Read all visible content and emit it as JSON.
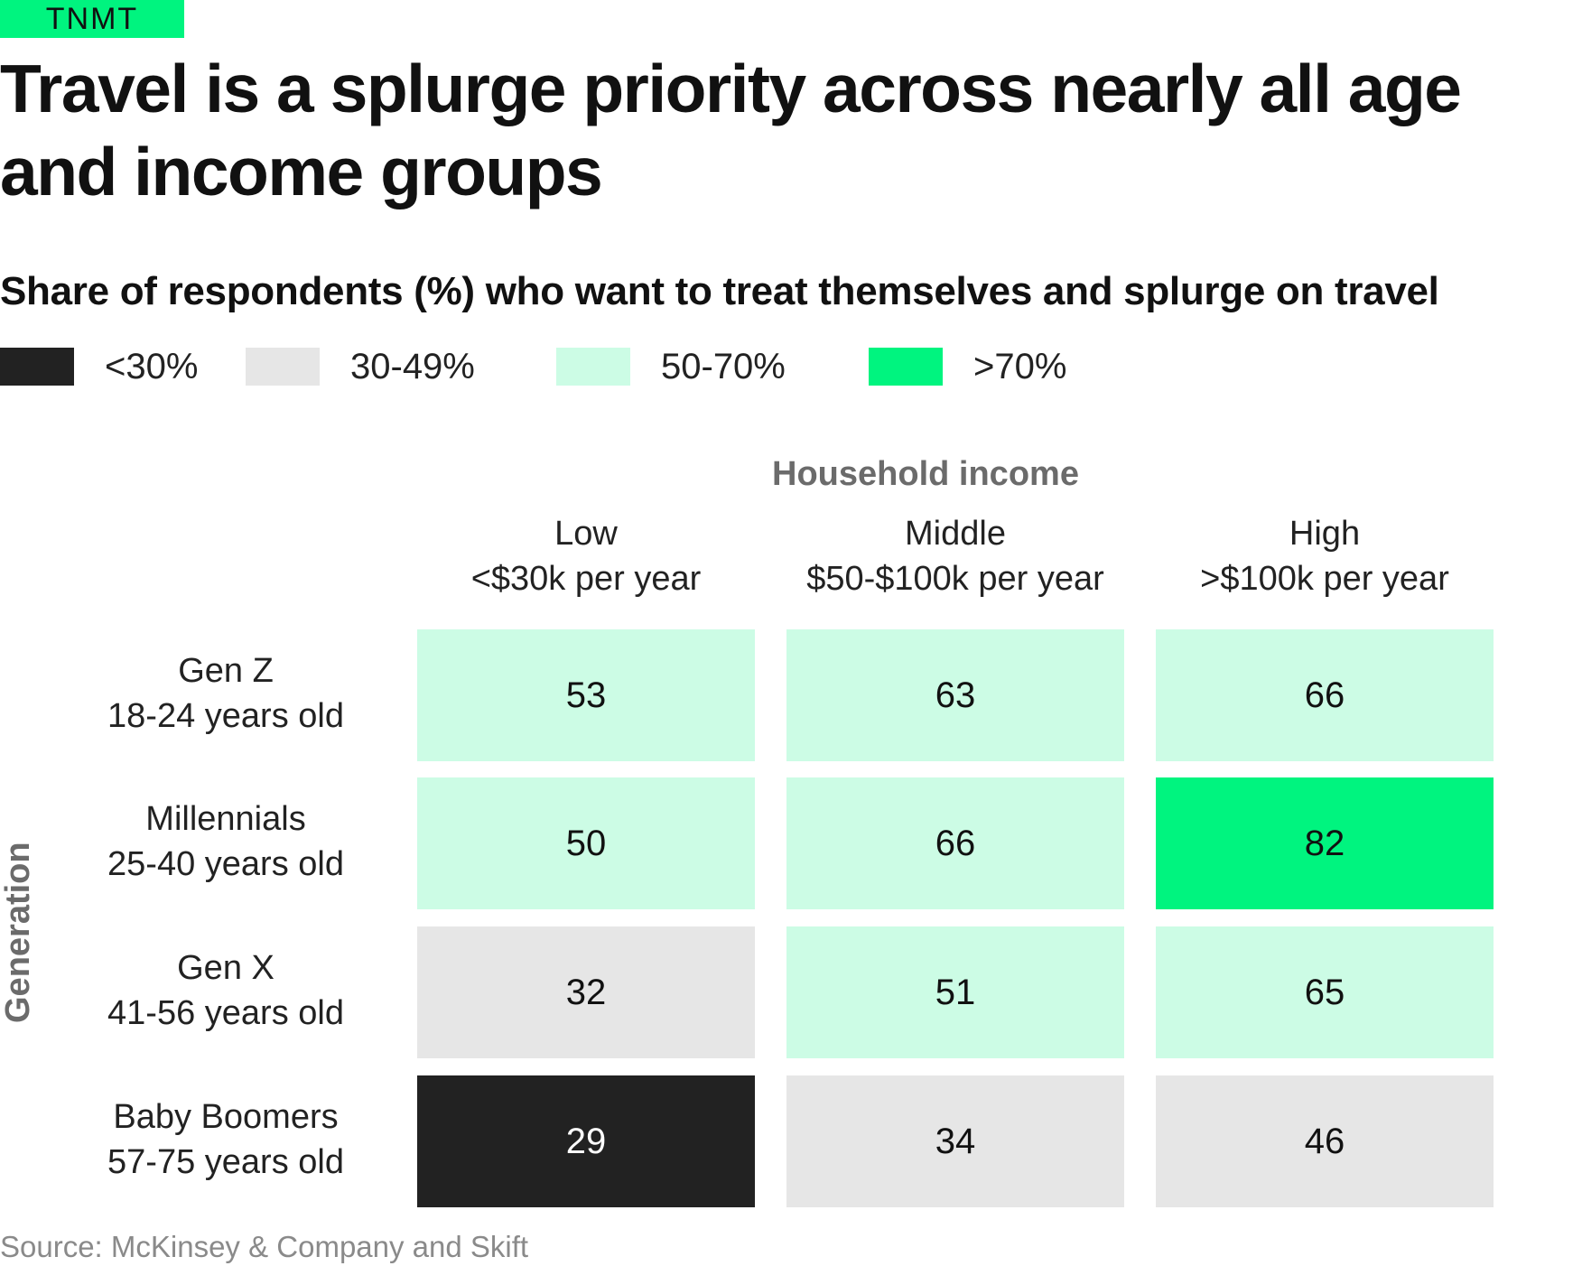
{
  "brand": {
    "name": "TNMT",
    "color": "#00f47f"
  },
  "title": "Travel is a splurge priority across nearly all age and income groups",
  "subtitle": "Share of respondents (%) who want to treat themselves and splurge on travel",
  "legend": [
    {
      "label": "<30%",
      "color": "#222222"
    },
    {
      "label": "30-49%",
      "color": "#e6e6e6"
    },
    {
      "label": "50-70%",
      "color": "#ccfce5"
    },
    {
      "label": ">70%",
      "color": "#00f47f"
    }
  ],
  "source": "Source: McKinsey & Company and Skift",
  "chart_data": {
    "type": "heatmap",
    "x_axis_title": "Household income",
    "y_axis_title": "Generation",
    "columns": [
      {
        "name": "Low",
        "detail": "<$30k per year"
      },
      {
        "name": "Middle",
        "detail": "$50-$100k per year"
      },
      {
        "name": "High",
        "detail": ">$100k per year"
      }
    ],
    "rows": [
      {
        "name": "Gen Z",
        "detail": "18-24 years old"
      },
      {
        "name": "Millennials",
        "detail": "25-40 years old"
      },
      {
        "name": "Gen X",
        "detail": "41-56 years old"
      },
      {
        "name": "Baby Boomers",
        "detail": "57-75 years old"
      }
    ],
    "values": [
      [
        53,
        63,
        66
      ],
      [
        50,
        66,
        82
      ],
      [
        32,
        51,
        65
      ],
      [
        29,
        34,
        46
      ]
    ],
    "bins": [
      {
        "max": 29,
        "color": "#222222",
        "text_color": "#ffffff"
      },
      {
        "max": 49,
        "color": "#e6e6e6",
        "text_color": "#111111"
      },
      {
        "max": 70,
        "color": "#ccfce5",
        "text_color": "#111111"
      },
      {
        "max": 100,
        "color": "#00f47f",
        "text_color": "#111111"
      }
    ]
  }
}
